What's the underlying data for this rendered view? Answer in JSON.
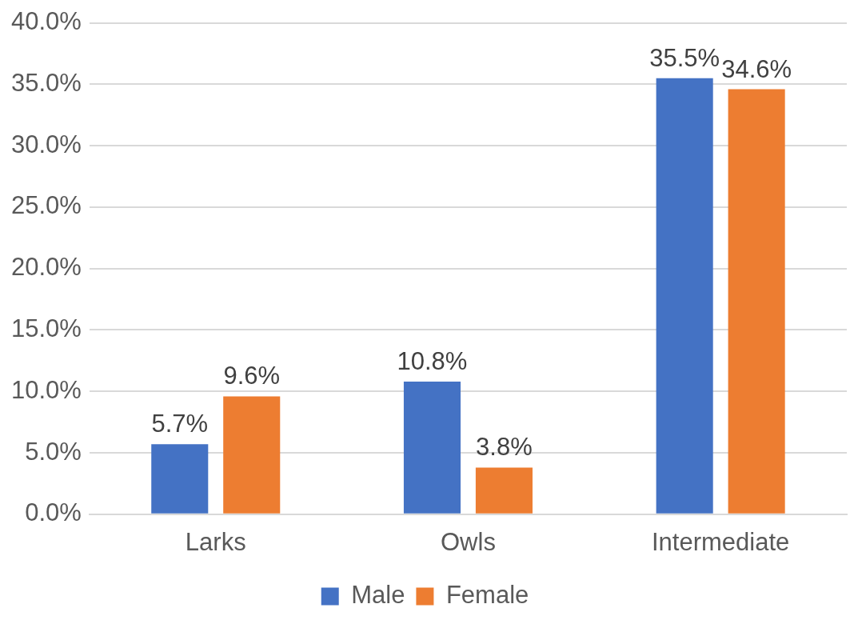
{
  "chart_data": {
    "type": "bar",
    "categories": [
      "Larks",
      "Owls",
      "Intermediate"
    ],
    "series": [
      {
        "name": "Male",
        "color": "#4472c4",
        "values": [
          5.7,
          10.8,
          35.5
        ],
        "value_labels": [
          "5.7%",
          "10.8%",
          "35.5%"
        ]
      },
      {
        "name": "Female",
        "color": "#ed7d31",
        "values": [
          9.6,
          3.8,
          34.6
        ],
        "value_labels": [
          "9.6%",
          "3.8%",
          "34.6%"
        ]
      }
    ],
    "ylim": [
      0,
      40
    ],
    "yticks": [
      {
        "value": 0,
        "label": "0.0%"
      },
      {
        "value": 5,
        "label": "5.0%"
      },
      {
        "value": 10,
        "label": "10.0%"
      },
      {
        "value": 15,
        "label": "15.0%"
      },
      {
        "value": 20,
        "label": "20.0%"
      },
      {
        "value": 25,
        "label": "25.0%"
      },
      {
        "value": 30,
        "label": "30.0%"
      },
      {
        "value": 35,
        "label": "35.0%"
      },
      {
        "value": 40,
        "label": "40.0%"
      }
    ],
    "grid": "y",
    "legend": "bottom"
  }
}
